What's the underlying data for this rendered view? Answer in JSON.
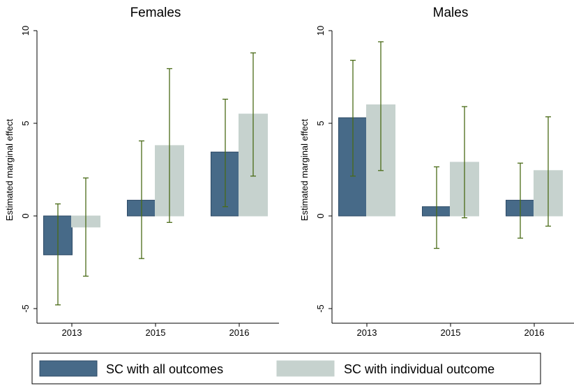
{
  "colors": {
    "series_all": "#476a88",
    "series_all_stroke": "#2d4a66",
    "series_individual": "#c6d2ce",
    "error_bar": "#4a6b17",
    "axis": "#000000"
  },
  "chart_data": {
    "type": "bar",
    "ylabel": "Estimated marginal effect",
    "ylim": [
      -5,
      10
    ],
    "yticks": [
      -5,
      0,
      5,
      10
    ],
    "categories": [
      "2013",
      "2015",
      "2016"
    ],
    "grid": false,
    "legend_position": "bottom",
    "legend": [
      "SC with all outcomes",
      "SC with individual outcome"
    ],
    "panels": [
      {
        "title": "Females",
        "series": [
          {
            "name": "SC with all outcomes",
            "values": [
              -2.1,
              0.85,
              3.45
            ],
            "ci_low": [
              -4.8,
              -2.3,
              0.5
            ],
            "ci_high": [
              0.65,
              4.05,
              6.3
            ]
          },
          {
            "name": "SC with individual outcome",
            "values": [
              -0.6,
              3.8,
              5.5
            ],
            "ci_low": [
              -3.25,
              -0.35,
              2.15
            ],
            "ci_high": [
              2.05,
              7.95,
              8.8
            ]
          }
        ]
      },
      {
        "title": "Males",
        "series": [
          {
            "name": "SC with all outcomes",
            "values": [
              5.3,
              0.5,
              0.85
            ],
            "ci_low": [
              2.15,
              -1.75,
              -1.2
            ],
            "ci_high": [
              8.4,
              2.65,
              2.85
            ]
          },
          {
            "name": "SC with individual outcome",
            "values": [
              6.0,
              2.9,
              2.45
            ],
            "ci_low": [
              2.45,
              -0.1,
              -0.55
            ],
            "ci_high": [
              9.4,
              5.9,
              5.35
            ]
          }
        ]
      }
    ]
  }
}
